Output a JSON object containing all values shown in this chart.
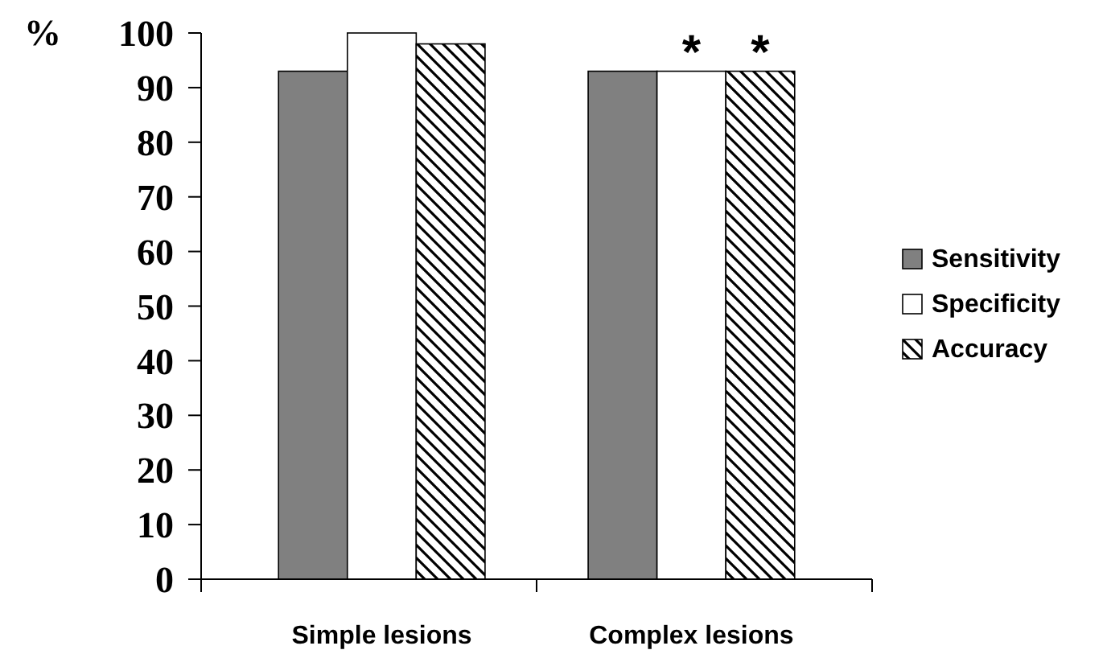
{
  "chart_data": {
    "type": "bar",
    "ylabel": "%",
    "categories": [
      "Simple lesions",
      "Complex lesions"
    ],
    "series": [
      {
        "name": "Sensitivity",
        "color": "#808080",
        "values": [
          93,
          93
        ]
      },
      {
        "name": "Specificity",
        "color": "#ffffff",
        "values": [
          100,
          93
        ],
        "value_labels": [
          null,
          "*"
        ]
      },
      {
        "name": "Accuracy",
        "color": "#000000",
        "values": [
          98,
          93
        ],
        "value_labels": [
          null,
          "*"
        ]
      }
    ],
    "ylim": [
      0,
      100
    ],
    "yticks": [
      0,
      10,
      20,
      30,
      40,
      50,
      60,
      70,
      80,
      90,
      100
    ],
    "grid": false,
    "legend": "right"
  }
}
